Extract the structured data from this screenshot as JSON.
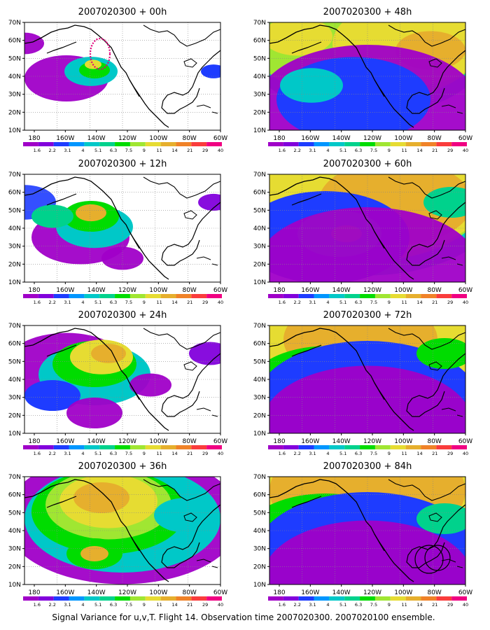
{
  "chart_data": [
    {
      "type": "heatmap",
      "title": "2007020300 + 00h"
    },
    {
      "type": "heatmap",
      "title": "2007020300 + 48h"
    },
    {
      "type": "heatmap",
      "title": "2007020300 + 12h"
    },
    {
      "type": "heatmap",
      "title": "2007020300 + 60h"
    },
    {
      "type": "heatmap",
      "title": "2007020300 + 24h"
    },
    {
      "type": "heatmap",
      "title": "2007020300 + 72h"
    },
    {
      "type": "heatmap",
      "title": "2007020300 + 36h"
    },
    {
      "type": "heatmap",
      "title": "2007020300 + 84h"
    }
  ],
  "x_ticks": [
    "180",
    "160W",
    "140W",
    "120W",
    "100W",
    "80W",
    "60W"
  ],
  "y_ticks": [
    "10N",
    "20N",
    "30N",
    "40N",
    "50N",
    "60N",
    "70N"
  ],
  "colorbar": {
    "labels": [
      "1.6",
      "2.2",
      "3.1",
      "4",
      "5.1",
      "6.3",
      "7.5",
      "9",
      "11",
      "14",
      "21",
      "29",
      "40"
    ],
    "colors": [
      "#a000c8",
      "#8200dc",
      "#1e3cff",
      "#0096ff",
      "#00c8c8",
      "#00d28c",
      "#00dc00",
      "#a0e632",
      "#e6dc32",
      "#e6af2d",
      "#f08228",
      "#fa3c3c",
      "#f00082"
    ]
  },
  "caption": "Signal Variance for u,v,T. Flight 14. Observation time 2007020300. 2007020100 ensemble."
}
